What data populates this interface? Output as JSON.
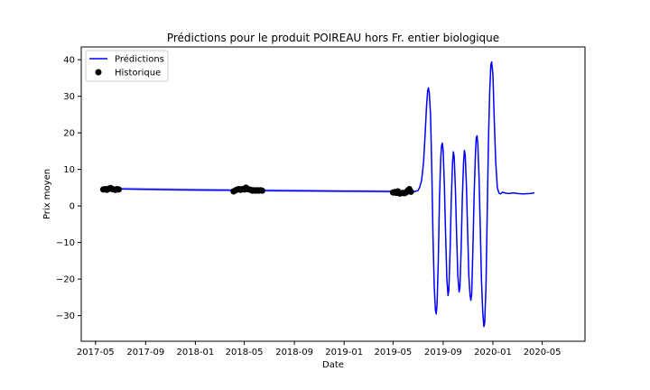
{
  "chart_data": {
    "type": "line",
    "title": "Prédictions pour le produit POIREAU hors Fr. entier biologique",
    "xlabel": "Date",
    "ylabel": "Prix moyen",
    "x_tick_labels": [
      "2017-05",
      "2017-09",
      "2018-01",
      "2018-05",
      "2018-09",
      "2019-01",
      "2019-05",
      "2019-09",
      "2020-01",
      "2020-05"
    ],
    "x_tick_dates": [
      "2017-05-01",
      "2017-09-01",
      "2018-01-01",
      "2018-05-01",
      "2018-09-01",
      "2019-01-01",
      "2019-05-01",
      "2019-09-01",
      "2020-01-01",
      "2020-05-01"
    ],
    "xlim": [
      "2017-03-27",
      "2020-08-14"
    ],
    "y_ticks": [
      40,
      30,
      20,
      10,
      0,
      -10,
      -20,
      -30
    ],
    "y_tick_labels": [
      "40",
      "30",
      "20",
      "10",
      "0",
      "−10",
      "−20",
      "−30"
    ],
    "ylim": [
      -37,
      43.5
    ],
    "grid": false,
    "legend_position": "upper-left",
    "colors": {
      "predictions": "#0000ff",
      "band": "#b3b3ff",
      "history": "#000000"
    },
    "series": [
      {
        "name": "Prédictions",
        "kind": "line",
        "points": [
          [
            "2017-05-15",
            4.8
          ],
          [
            "2017-06-15",
            4.7
          ],
          [
            "2017-08-01",
            4.6
          ],
          [
            "2017-10-01",
            4.5
          ],
          [
            "2017-12-01",
            4.4
          ],
          [
            "2018-02-01",
            4.35
          ],
          [
            "2018-04-01",
            4.3
          ],
          [
            "2018-06-01",
            4.25
          ],
          [
            "2018-08-01",
            4.2
          ],
          [
            "2018-10-01",
            4.15
          ],
          [
            "2018-12-01",
            4.1
          ],
          [
            "2019-02-01",
            4.05
          ],
          [
            "2019-04-01",
            4.0
          ],
          [
            "2019-06-01",
            3.95
          ],
          [
            "2019-06-25",
            4.0
          ],
          [
            "2019-07-01",
            4.2
          ],
          [
            "2019-07-05",
            5.0
          ],
          [
            "2019-07-10",
            7.0
          ],
          [
            "2019-07-15",
            12.0
          ],
          [
            "2019-07-19",
            20.0
          ],
          [
            "2019-07-22",
            27.0
          ],
          [
            "2019-07-25",
            31.5
          ],
          [
            "2019-07-27",
            32.3
          ],
          [
            "2019-07-29",
            31.0
          ],
          [
            "2019-08-01",
            25.0
          ],
          [
            "2019-08-04",
            10.0
          ],
          [
            "2019-08-07",
            -8.0
          ],
          [
            "2019-08-10",
            -22.0
          ],
          [
            "2019-08-13",
            -28.5
          ],
          [
            "2019-08-15",
            -29.5
          ],
          [
            "2019-08-17",
            -27.0
          ],
          [
            "2019-08-20",
            -15.0
          ],
          [
            "2019-08-23",
            2.0
          ],
          [
            "2019-08-26",
            13.0
          ],
          [
            "2019-08-28",
            16.5
          ],
          [
            "2019-08-30",
            17.2
          ],
          [
            "2019-09-01",
            15.0
          ],
          [
            "2019-09-04",
            6.0
          ],
          [
            "2019-09-07",
            -8.0
          ],
          [
            "2019-09-10",
            -20.0
          ],
          [
            "2019-09-13",
            -24.5
          ],
          [
            "2019-09-15",
            -23.0
          ],
          [
            "2019-09-18",
            -12.0
          ],
          [
            "2019-09-21",
            2.0
          ],
          [
            "2019-09-24",
            12.0
          ],
          [
            "2019-09-26",
            14.8
          ],
          [
            "2019-09-28",
            13.5
          ],
          [
            "2019-10-01",
            5.0
          ],
          [
            "2019-10-04",
            -8.0
          ],
          [
            "2019-10-07",
            -19.0
          ],
          [
            "2019-10-10",
            -23.5
          ],
          [
            "2019-10-12",
            -22.5
          ],
          [
            "2019-10-15",
            -12.0
          ],
          [
            "2019-10-18",
            2.0
          ],
          [
            "2019-10-21",
            12.0
          ],
          [
            "2019-10-23",
            15.2
          ],
          [
            "2019-10-25",
            14.0
          ],
          [
            "2019-10-28",
            6.0
          ],
          [
            "2019-10-31",
            -7.0
          ],
          [
            "2019-11-03",
            -19.0
          ],
          [
            "2019-11-06",
            -24.5
          ],
          [
            "2019-11-08",
            -25.8
          ],
          [
            "2019-11-10",
            -24.0
          ],
          [
            "2019-11-13",
            -12.0
          ],
          [
            "2019-11-16",
            3.0
          ],
          [
            "2019-11-19",
            14.0
          ],
          [
            "2019-11-21",
            18.5
          ],
          [
            "2019-11-23",
            19.2
          ],
          [
            "2019-11-25",
            17.0
          ],
          [
            "2019-11-28",
            8.0
          ],
          [
            "2019-12-01",
            -6.0
          ],
          [
            "2019-12-04",
            -20.0
          ],
          [
            "2019-12-07",
            -29.0
          ],
          [
            "2019-12-10",
            -33.0
          ],
          [
            "2019-12-12",
            -32.0
          ],
          [
            "2019-12-15",
            -22.0
          ],
          [
            "2019-12-18",
            -2.0
          ],
          [
            "2019-12-21",
            17.0
          ],
          [
            "2019-12-24",
            31.0
          ],
          [
            "2019-12-27",
            38.5
          ],
          [
            "2019-12-29",
            39.4
          ],
          [
            "2020-01-01",
            36.0
          ],
          [
            "2020-01-04",
            25.0
          ],
          [
            "2020-01-08",
            12.0
          ],
          [
            "2020-01-12",
            5.0
          ],
          [
            "2020-01-16",
            3.5
          ],
          [
            "2020-01-20",
            3.3
          ],
          [
            "2020-01-25",
            3.8
          ],
          [
            "2020-02-01",
            3.5
          ],
          [
            "2020-02-10",
            3.4
          ],
          [
            "2020-02-20",
            3.6
          ],
          [
            "2020-03-01",
            3.4
          ],
          [
            "2020-03-15",
            3.3
          ],
          [
            "2020-04-01",
            3.4
          ],
          [
            "2020-04-12",
            3.6
          ]
        ]
      },
      {
        "name": "Historique",
        "kind": "scatter",
        "points": [
          [
            "2017-05-20",
            4.5
          ],
          [
            "2017-05-25",
            4.6
          ],
          [
            "2017-05-29",
            4.4
          ],
          [
            "2017-06-02",
            4.7
          ],
          [
            "2017-06-07",
            4.9
          ],
          [
            "2017-06-11",
            4.6
          ],
          [
            "2017-06-15",
            4.5
          ],
          [
            "2017-06-19",
            4.4
          ],
          [
            "2017-06-23",
            4.6
          ],
          [
            "2017-06-27",
            4.5
          ],
          [
            "2018-04-05",
            4.0
          ],
          [
            "2018-04-10",
            4.3
          ],
          [
            "2018-04-14",
            4.5
          ],
          [
            "2018-04-18",
            4.6
          ],
          [
            "2018-04-22",
            4.4
          ],
          [
            "2018-04-26",
            4.6
          ],
          [
            "2018-05-01",
            4.5
          ],
          [
            "2018-05-05",
            5.0
          ],
          [
            "2018-05-09",
            4.6
          ],
          [
            "2018-05-13",
            4.5
          ],
          [
            "2018-05-17",
            4.4
          ],
          [
            "2018-05-21",
            4.2
          ],
          [
            "2018-05-25",
            4.3
          ],
          [
            "2018-05-29",
            4.2
          ],
          [
            "2018-06-02",
            4.3
          ],
          [
            "2018-06-06",
            4.2
          ],
          [
            "2018-06-10",
            4.3
          ],
          [
            "2018-06-14",
            4.2
          ],
          [
            "2019-05-01",
            3.7
          ],
          [
            "2019-05-05",
            3.8
          ],
          [
            "2019-05-09",
            3.6
          ],
          [
            "2019-05-13",
            4.0
          ],
          [
            "2019-05-17",
            3.4
          ],
          [
            "2019-05-21",
            3.5
          ],
          [
            "2019-05-25",
            3.6
          ],
          [
            "2019-05-29",
            3.5
          ],
          [
            "2019-06-02",
            3.7
          ],
          [
            "2019-06-06",
            4.2
          ],
          [
            "2019-06-10",
            4.6
          ],
          [
            "2019-06-14",
            3.9
          ]
        ]
      }
    ],
    "band": {
      "upper": [
        [
          "2017-05-15",
          5.2
        ],
        [
          "2018-01-01",
          4.8
        ],
        [
          "2019-01-01",
          4.4
        ],
        [
          "2019-06-25",
          4.3
        ]
      ],
      "lower": [
        [
          "2017-05-15",
          4.5
        ],
        [
          "2018-01-01",
          4.0
        ],
        [
          "2019-01-01",
          3.7
        ],
        [
          "2019-06-25",
          3.6
        ]
      ]
    }
  }
}
